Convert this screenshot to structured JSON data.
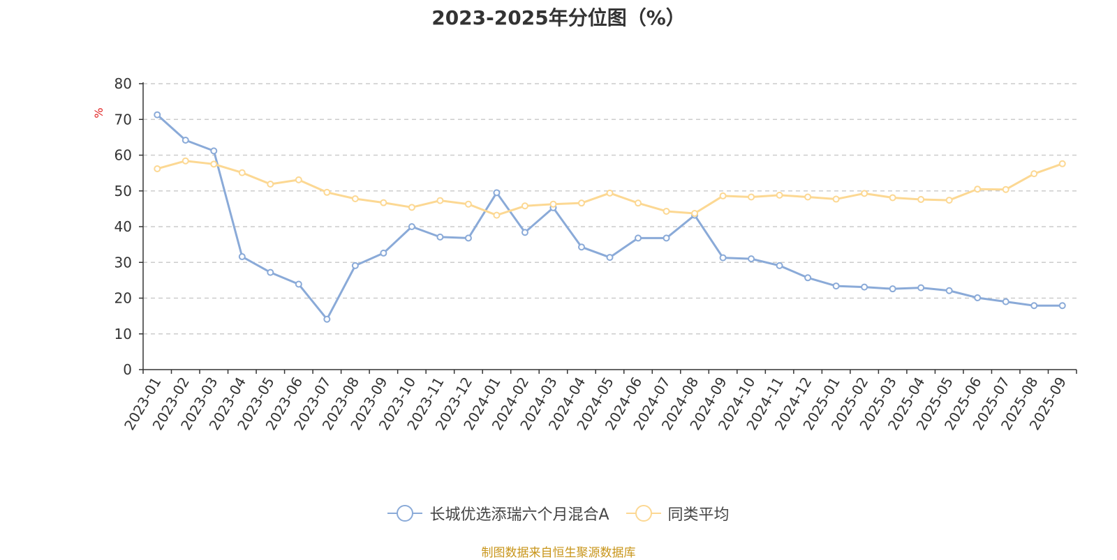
{
  "chart_data": {
    "type": "line",
    "title": "2023-2025年分位图（%）",
    "ylabel": "%",
    "ylim": [
      0,
      80
    ],
    "yticks": [
      0,
      10,
      20,
      30,
      40,
      50,
      60,
      70,
      80
    ],
    "grid": true,
    "legend_position": "bottom",
    "categories": [
      "2023-01",
      "2023-02",
      "2023-03",
      "2023-04",
      "2023-05",
      "2023-06",
      "2023-07",
      "2023-08",
      "2023-09",
      "2023-10",
      "2023-11",
      "2023-12",
      "2024-01",
      "2024-02",
      "2024-03",
      "2024-04",
      "2024-05",
      "2024-06",
      "2024-07",
      "2024-08",
      "2024-09",
      "2024-10",
      "2024-11",
      "2024-12",
      "2025-01",
      "2025-02",
      "2025-03",
      "2025-04",
      "2025-05",
      "2025-06",
      "2025-07",
      "2025-08",
      "2025-09"
    ],
    "series": [
      {
        "name": "长城优选添瑞六个月混合A",
        "color": "#8aaad8",
        "values": [
          71.3,
          64.2,
          61.2,
          31.6,
          27.2,
          23.9,
          14.1,
          29.1,
          32.6,
          40.0,
          37.1,
          36.8,
          49.5,
          38.4,
          45.3,
          34.3,
          31.4,
          36.8,
          36.8,
          43.2,
          31.3,
          31.0,
          29.1,
          25.7,
          23.4,
          23.1,
          22.6,
          22.9,
          22.1,
          20.1,
          19.0,
          17.9,
          17.9
        ]
      },
      {
        "name": "同类平均",
        "color": "#fcd893",
        "values": [
          56.2,
          58.4,
          57.5,
          55.1,
          51.9,
          53.1,
          49.6,
          47.8,
          46.7,
          45.4,
          47.3,
          46.3,
          43.2,
          45.8,
          46.3,
          46.6,
          49.4,
          46.6,
          44.3,
          43.7,
          48.6,
          48.3,
          48.8,
          48.3,
          47.7,
          49.3,
          48.1,
          47.6,
          47.4,
          50.5,
          50.4,
          54.8,
          57.6
        ]
      }
    ]
  },
  "source": "制图数据来自恒生聚源数据库"
}
